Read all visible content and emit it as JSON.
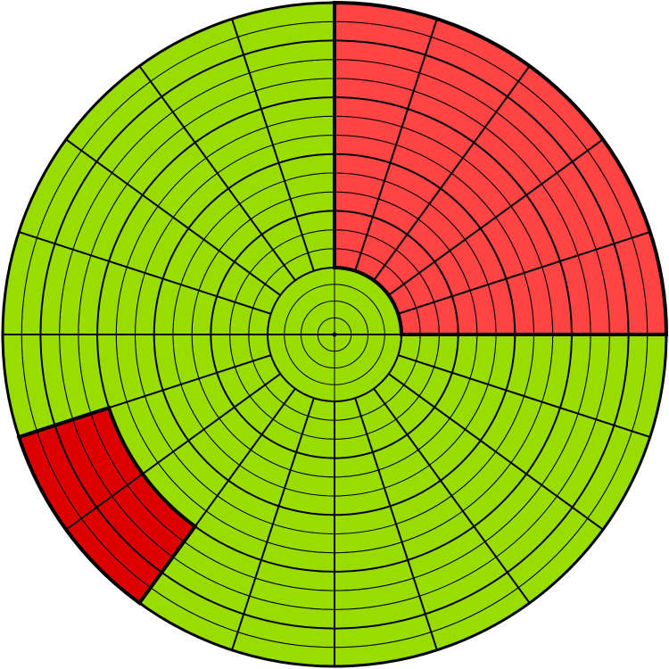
{
  "diagram": {
    "type": "polar-grid",
    "rings_outside_hub": 14,
    "hub_rings": 4,
    "sectors": 20,
    "major_ring_every": 3,
    "colors": {
      "background": "#ffffff",
      "cell": "#99dd00",
      "highlight": "#ff4444",
      "selected": "#dd0000",
      "line": "#000000"
    },
    "highlighted_region": {
      "sector_start": 0,
      "sector_end": 4,
      "ring_start": 0,
      "ring_end": 13,
      "color_key": "highlight"
    },
    "selected_region": {
      "sector_start": 12,
      "sector_end": 13,
      "ring_start": 9,
      "ring_end": 13,
      "color_key": "selected"
    }
  }
}
